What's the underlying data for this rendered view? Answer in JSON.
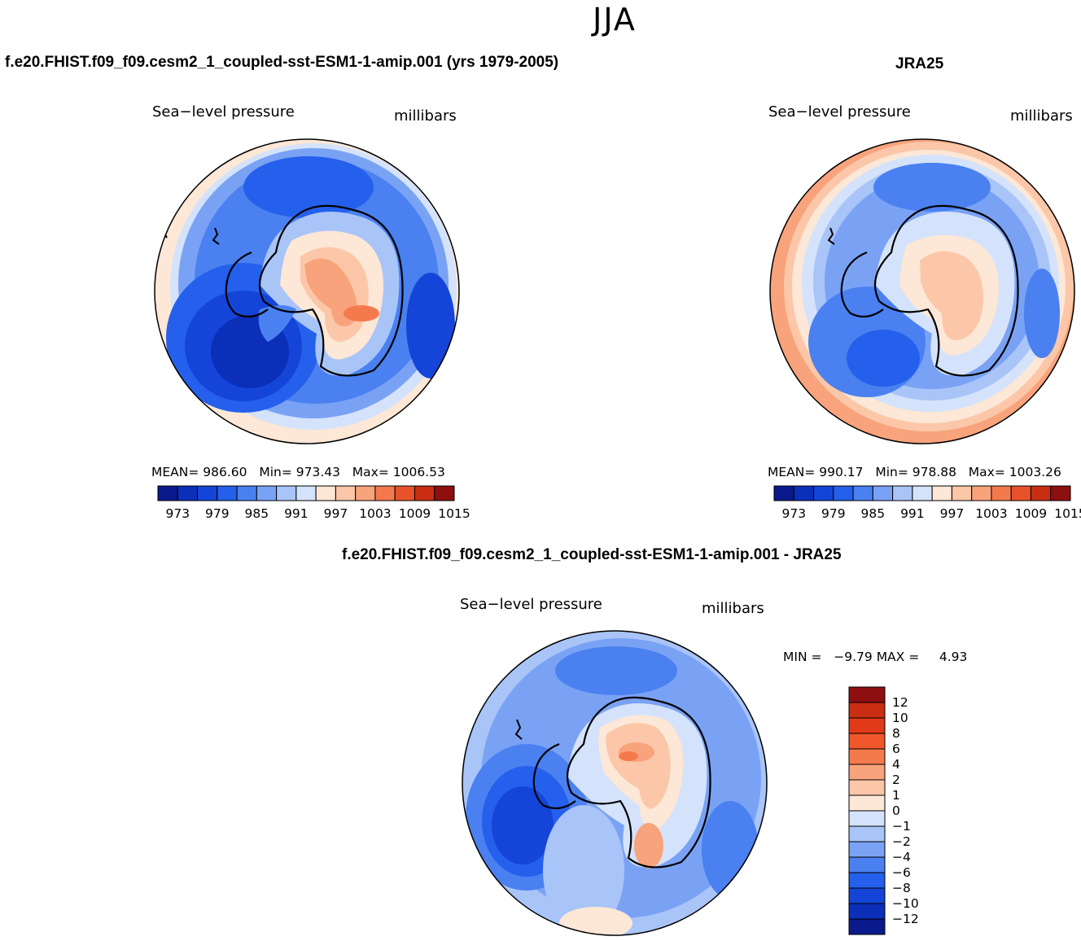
{
  "season": "JJA",
  "panels": [
    {
      "case_title": "f.e20.FHIST.f09_f09.cesm2_1_coupled-sst-ESM1-1-amip.001 (yrs 1979-2005)",
      "variable": "Sea−level pressure",
      "units": "millibars",
      "stats": {
        "mean_label": "MEAN=",
        "mean": "986.60",
        "min_label": "Min=",
        "min": "973.43",
        "max_label": "Max=",
        "max": "1006.53"
      }
    },
    {
      "case_title": "JRA25",
      "variable": "Sea−level pressure",
      "units": "millibars",
      "stats": {
        "mean_label": "MEAN=",
        "mean": "990.17",
        "min_label": "Min=",
        "min": "978.88",
        "max_label": "Max=",
        "max": "1003.26"
      }
    }
  ],
  "colorbar": {
    "labels": [
      "973",
      "979",
      "985",
      "991",
      "997",
      "1003",
      "1009",
      "1015"
    ],
    "colors": [
      "#0a1a8c",
      "#0b2fb8",
      "#1545d8",
      "#2560ec",
      "#4a80f0",
      "#7aa2f4",
      "#a9c4f7",
      "#d4e3fb",
      "#fde7d6",
      "#fbc7a8",
      "#f8a37c",
      "#f47a4e",
      "#e8522a",
      "#c92e12",
      "#8e0f0f"
    ]
  },
  "diff_panel": {
    "case_title": "f.e20.FHIST.f09_f09.cesm2_1_coupled-sst-ESM1-1-amip.001 - JRA25",
    "variable": "Sea−level pressure",
    "units": "millibars",
    "min_label": "MIN =",
    "min": "−9.79",
    "max_label": "MAX =",
    "max": "4.93",
    "colorbar_labels": [
      "12",
      "10",
      "8",
      "6",
      "4",
      "2",
      "1",
      "0",
      "−1",
      "−2",
      "−4",
      "−6",
      "−8",
      "−10",
      "−12"
    ],
    "colorbar_colors": [
      "#8e0f0f",
      "#c92e12",
      "#e03a18",
      "#f0582c",
      "#f47a4e",
      "#f8a37c",
      "#fbc7a8",
      "#fde7d6",
      "#d4e3fb",
      "#a9c4f7",
      "#7aa2f4",
      "#4a80f0",
      "#2560ec",
      "#1545d8",
      "#0b2fb8",
      "#0a1a8c"
    ]
  }
}
